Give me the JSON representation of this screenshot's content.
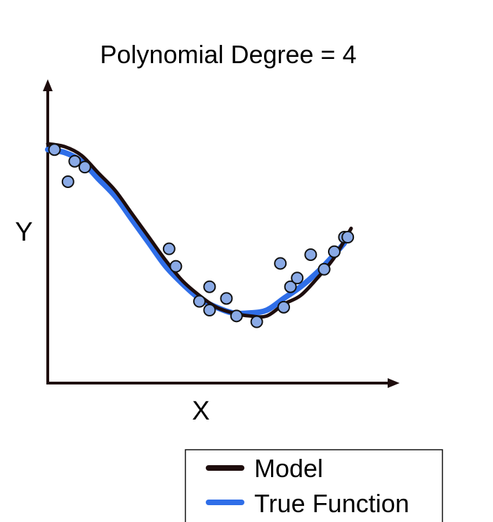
{
  "chart_data": {
    "type": "scatter",
    "title": "Polynomial Degree = 4",
    "xlabel": "X",
    "ylabel": "Y",
    "xlim": [
      0,
      10
    ],
    "ylim": [
      0,
      10
    ],
    "grid": false,
    "legend_placement": "bottom-right",
    "points": {
      "x": [
        0.2,
        0.6,
        0.8,
        1.1,
        3.6,
        3.8,
        4.5,
        4.8,
        4.8,
        5.3,
        5.6,
        6.2,
        6.9,
        7.0,
        7.2,
        7.4,
        7.8,
        8.2,
        8.5,
        8.8,
        8.9
      ],
      "y": [
        8.0,
        6.9,
        7.6,
        7.4,
        4.6,
        4.0,
        2.8,
        2.5,
        3.3,
        2.9,
        2.3,
        2.1,
        4.1,
        2.6,
        3.3,
        3.6,
        4.4,
        3.9,
        4.5,
        5.0,
        5.0
      ]
    },
    "series": [
      {
        "name": "Model",
        "color": "#1e0d0d",
        "x": [
          0.0,
          0.5,
          1.0,
          1.5,
          2.0,
          2.5,
          3.0,
          3.5,
          4.0,
          4.5,
          5.0,
          5.5,
          6.0,
          6.5,
          7.0,
          7.5,
          8.0,
          8.5,
          9.0
        ],
        "y": [
          8.2,
          8.1,
          7.8,
          7.2,
          6.6,
          5.8,
          5.0,
          4.2,
          3.5,
          3.0,
          2.6,
          2.4,
          2.3,
          2.3,
          2.7,
          3.0,
          3.6,
          4.3,
          5.3
        ]
      },
      {
        "name": "True Function",
        "color": "#2f6ee8",
        "x": [
          0.0,
          0.5,
          1.0,
          1.5,
          2.0,
          2.5,
          3.0,
          3.5,
          4.0,
          4.5,
          5.0,
          5.5,
          6.0,
          6.5,
          7.0,
          7.5,
          8.0,
          8.5,
          8.8
        ],
        "y": [
          8.0,
          7.9,
          7.6,
          7.0,
          6.4,
          5.6,
          4.8,
          4.0,
          3.4,
          2.9,
          2.6,
          2.4,
          2.4,
          2.5,
          2.9,
          3.3,
          3.8,
          4.4,
          4.8
        ]
      }
    ],
    "point_color": "#8aaae6",
    "axis_color": "#1e0d0d"
  }
}
